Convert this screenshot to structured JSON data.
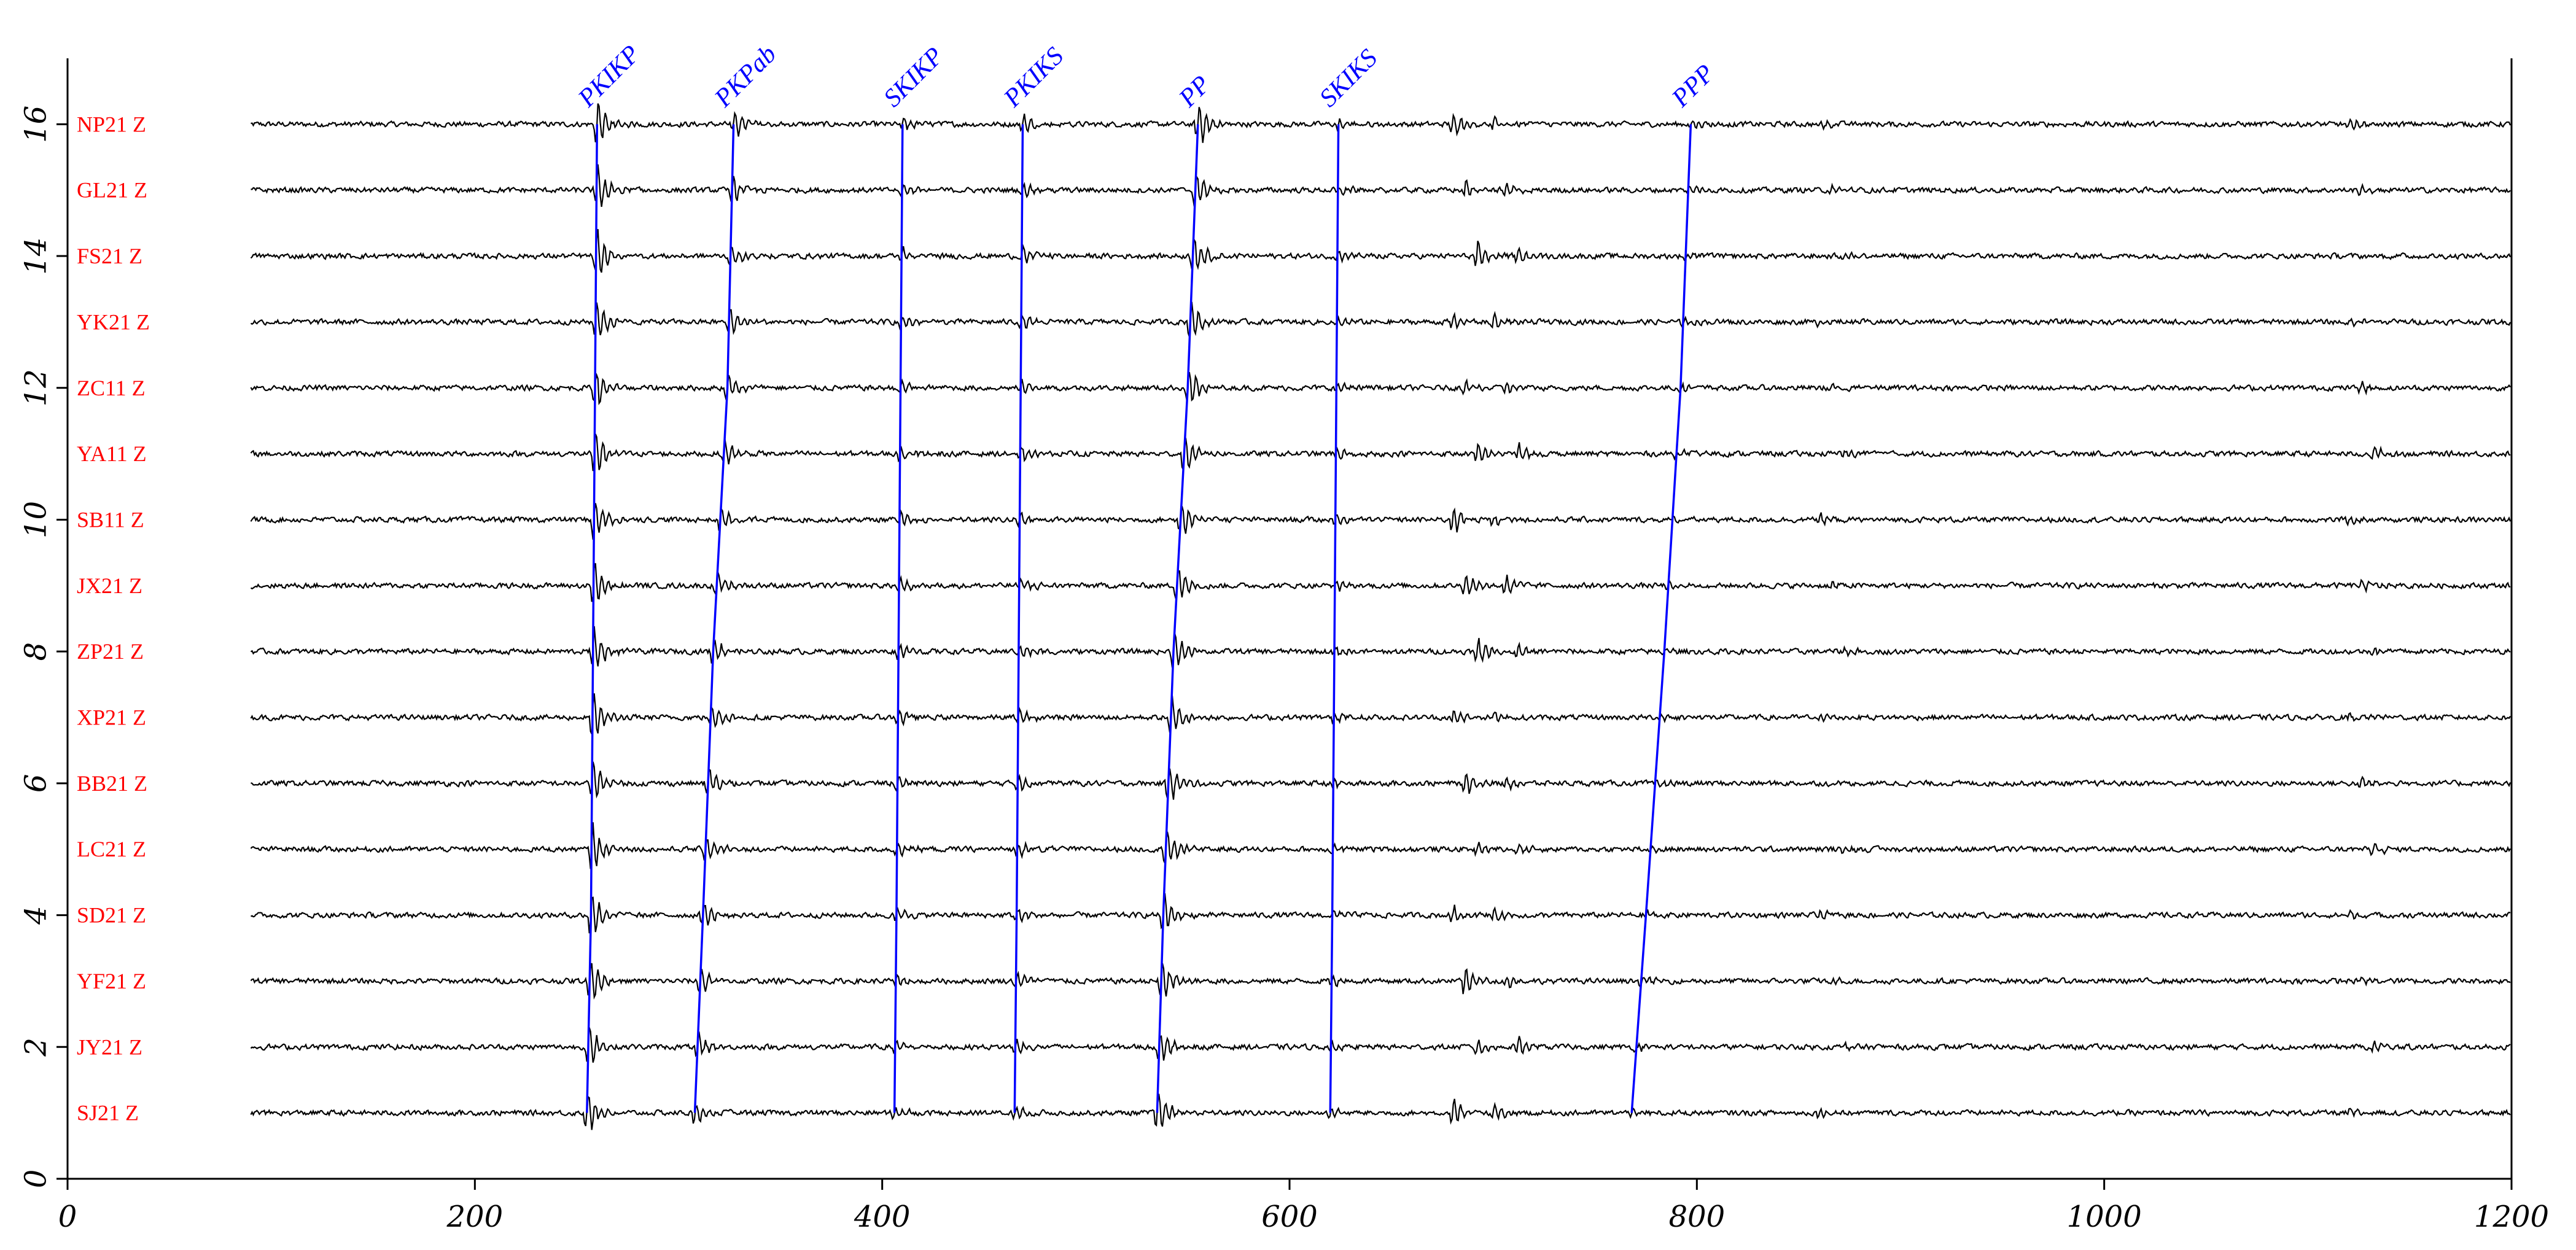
{
  "chart_data": {
    "type": "line",
    "title": "",
    "xlabel": "",
    "ylabel": "",
    "xlim": [
      0,
      1200
    ],
    "ylim": [
      0,
      17
    ],
    "x_ticks": [
      0,
      200,
      400,
      600,
      800,
      1000,
      1200
    ],
    "y_ticks": [
      0,
      2,
      4,
      6,
      8,
      10,
      12,
      14,
      16
    ],
    "trace_start": 90,
    "trace_end": 1200,
    "trace_color": "#000000",
    "stations": [
      {
        "name": "NP21 Z",
        "offset": 16
      },
      {
        "name": "GL21 Z",
        "offset": 15
      },
      {
        "name": "FS21 Z",
        "offset": 14
      },
      {
        "name": "YK21 Z",
        "offset": 13
      },
      {
        "name": "ZC11 Z",
        "offset": 12
      },
      {
        "name": "YA11 Z",
        "offset": 11
      },
      {
        "name": "SB11 Z",
        "offset": 10
      },
      {
        "name": "JX21 Z",
        "offset": 9
      },
      {
        "name": "ZP21 Z",
        "offset": 8
      },
      {
        "name": "XP21 Z",
        "offset": 7
      },
      {
        "name": "BB21 Z",
        "offset": 6
      },
      {
        "name": "LC21 Z",
        "offset": 5
      },
      {
        "name": "SD21 Z",
        "offset": 4
      },
      {
        "name": "YF21 Z",
        "offset": 3
      },
      {
        "name": "JY21 Z",
        "offset": 2
      },
      {
        "name": "SJ21 Z",
        "offset": 1
      }
    ],
    "station_label_color": "#ff0000",
    "phase_color": "#0000ff",
    "phases": [
      {
        "name": "PKIKP",
        "points": [
          [
            255,
            1
          ],
          [
            257,
            4
          ],
          [
            258,
            8
          ],
          [
            259,
            12
          ],
          [
            260,
            16
          ]
        ]
      },
      {
        "name": "PKPab",
        "points": [
          [
            308,
            1
          ],
          [
            312,
            4
          ],
          [
            317,
            8
          ],
          [
            324,
            12
          ],
          [
            327,
            16
          ]
        ]
      },
      {
        "name": "SKIKP",
        "points": [
          [
            406,
            1
          ],
          [
            407,
            4
          ],
          [
            408,
            8
          ],
          [
            409,
            12
          ],
          [
            410,
            16
          ]
        ]
      },
      {
        "name": "PKIKS",
        "points": [
          [
            465,
            1
          ],
          [
            466,
            4
          ],
          [
            467,
            8
          ],
          [
            468,
            12
          ],
          [
            469,
            16
          ]
        ]
      },
      {
        "name": "PP",
        "points": [
          [
            535,
            1
          ],
          [
            538,
            4
          ],
          [
            543,
            8
          ],
          [
            550,
            12
          ],
          [
            555,
            16
          ]
        ]
      },
      {
        "name": "SKIKS",
        "points": [
          [
            620,
            1
          ],
          [
            621,
            4
          ],
          [
            622,
            8
          ],
          [
            623,
            12
          ],
          [
            624,
            16
          ]
        ]
      },
      {
        "name": "PPP",
        "points": [
          [
            768,
            1
          ],
          [
            775,
            4
          ],
          [
            784,
            8
          ],
          [
            792,
            12
          ],
          [
            797,
            16
          ]
        ]
      }
    ]
  }
}
